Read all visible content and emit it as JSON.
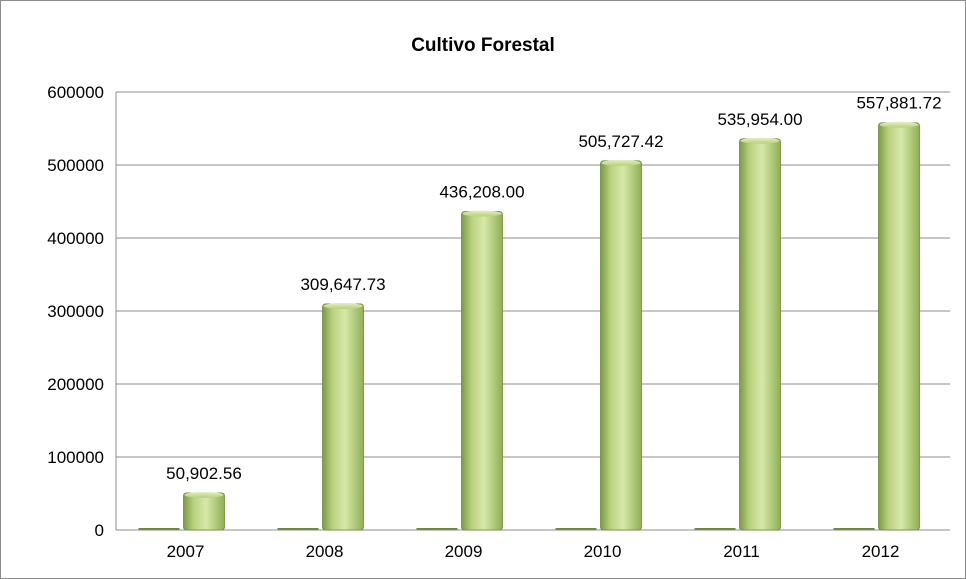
{
  "chart_data": {
    "type": "bar",
    "title": "Cultivo Forestal",
    "xlabel": "",
    "ylabel": "",
    "categories": [
      "2007",
      "2008",
      "2009",
      "2010",
      "2011",
      "2012"
    ],
    "series": [
      {
        "values": [
          0,
          0,
          0,
          0,
          0,
          0
        ]
      },
      {
        "values": [
          50902.56,
          309647.73,
          436208.0,
          505727.42,
          535954.0,
          557881.72
        ]
      }
    ],
    "data_labels": [
      "50,902.56",
      "309,647.73",
      "436,208.00",
      "505,727.42",
      "535,954.00",
      "557,881.72"
    ],
    "y_ticks": [
      "0",
      "100000",
      "200000",
      "300000",
      "400000",
      "500000",
      "600000"
    ],
    "ylim": [
      0,
      600000
    ],
    "grid": true,
    "legend": "none",
    "colors": {
      "bar_light": "#d6e6a6",
      "bar_mid": "#a7c46a",
      "bar_dark": "#6e8b3d",
      "grid": "#8c8c8c",
      "border": "#7f7f7f"
    }
  }
}
